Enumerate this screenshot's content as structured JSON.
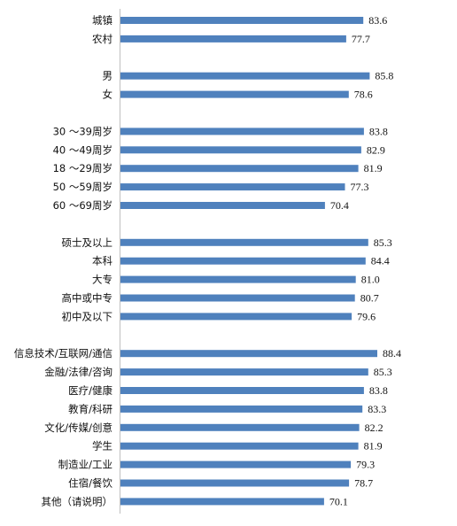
{
  "chart_data": {
    "type": "bar",
    "orientation": "horizontal",
    "bar_color": "#4f81bd",
    "grid": false,
    "xlim": [
      0,
      100
    ],
    "value_format": "0.0",
    "groups": [
      {
        "categories": [
          "城镇",
          "农村"
        ],
        "values": [
          83.6,
          77.7
        ]
      },
      {
        "categories": [
          "男",
          "女"
        ],
        "values": [
          85.8,
          78.6
        ]
      },
      {
        "categories": [
          "30 ～39周岁",
          "40 ～49周岁",
          "18 ～29周岁",
          "50 ～59周岁",
          "60 ～69周岁"
        ],
        "values": [
          83.8,
          82.9,
          81.9,
          77.3,
          70.4
        ]
      },
      {
        "categories": [
          "硕士及以上",
          "本科",
          "大专",
          "高中或中专",
          "初中及以下"
        ],
        "values": [
          85.3,
          84.4,
          81.0,
          80.7,
          79.6
        ]
      },
      {
        "categories": [
          "信息技术/互联网/通信",
          "金融/法律/咨询",
          "医疗/健康",
          "教育/科研",
          "文化/传媒/创意",
          "学生",
          "制造业/工业",
          "住宿/餐饮",
          "其他（请说明）"
        ],
        "values": [
          88.4,
          85.3,
          83.8,
          83.3,
          82.2,
          81.9,
          79.3,
          78.7,
          70.1
        ]
      }
    ]
  }
}
